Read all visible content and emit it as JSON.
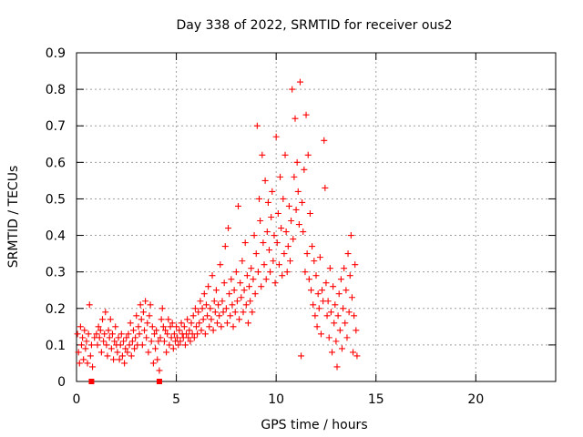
{
  "chart_data": {
    "type": "scatter",
    "title": "Day 338 of 2022, SRMTID for receiver ous2",
    "xlabel": "GPS time / hours",
    "ylabel": "SRMTID / TECUs",
    "xlim": [
      0,
      24
    ],
    "ylim": [
      0,
      0.9
    ],
    "x_ticks": [
      0,
      5,
      10,
      15,
      20
    ],
    "x_tick_labels": [
      "0",
      "5",
      "10",
      "15",
      "20"
    ],
    "y_ticks": [
      0,
      0.1,
      0.2,
      0.3,
      0.4,
      0.5,
      0.6,
      0.7,
      0.8,
      0.9
    ],
    "y_tick_labels": [
      "0",
      "0.1",
      "0.2",
      "0.3",
      "0.4",
      "0.5",
      "0.6",
      "0.7",
      "0.8",
      "0.9"
    ],
    "grid": true,
    "marker": "plus",
    "color": "#ff0000",
    "series": [
      {
        "name": "SRMTID",
        "points": [
          [
            0.05,
            0.13
          ],
          [
            0.1,
            0.08
          ],
          [
            0.15,
            0.05
          ],
          [
            0.2,
            0.15
          ],
          [
            0.25,
            0.1
          ],
          [
            0.3,
            0.12
          ],
          [
            0.35,
            0.06
          ],
          [
            0.4,
            0.14
          ],
          [
            0.45,
            0.09
          ],
          [
            0.5,
            0.11
          ],
          [
            0.55,
            0.05
          ],
          [
            0.6,
            0.13
          ],
          [
            0.65,
            0.21
          ],
          [
            0.7,
            0.07
          ],
          [
            0.75,
            0.1
          ],
          [
            0.8,
            0.04
          ],
          [
            0.9,
            0.12
          ],
          [
            1.0,
            0.13
          ],
          [
            1.05,
            0.1
          ],
          [
            1.1,
            0.15
          ],
          [
            1.15,
            0.12
          ],
          [
            1.2,
            0.14
          ],
          [
            1.25,
            0.08
          ],
          [
            1.3,
            0.17
          ],
          [
            1.35,
            0.11
          ],
          [
            1.4,
            0.13
          ],
          [
            1.45,
            0.19
          ],
          [
            1.5,
            0.1
          ],
          [
            1.55,
            0.07
          ],
          [
            1.6,
            0.14
          ],
          [
            1.65,
            0.12
          ],
          [
            1.7,
            0.17
          ],
          [
            1.75,
            0.09
          ],
          [
            1.8,
            0.13
          ],
          [
            1.85,
            0.06
          ],
          [
            1.9,
            0.11
          ],
          [
            1.95,
            0.15
          ],
          [
            2.0,
            0.1
          ],
          [
            2.05,
            0.08
          ],
          [
            2.1,
            0.12
          ],
          [
            2.15,
            0.06
          ],
          [
            2.2,
            0.1
          ],
          [
            2.25,
            0.13
          ],
          [
            2.3,
            0.07
          ],
          [
            2.35,
            0.11
          ],
          [
            2.4,
            0.05
          ],
          [
            2.45,
            0.09
          ],
          [
            2.5,
            0.12
          ],
          [
            2.55,
            0.08
          ],
          [
            2.6,
            0.13
          ],
          [
            2.65,
            0.1
          ],
          [
            2.7,
            0.16
          ],
          [
            2.75,
            0.07
          ],
          [
            2.8,
            0.11
          ],
          [
            2.85,
            0.14
          ],
          [
            2.9,
            0.09
          ],
          [
            2.95,
            0.12
          ],
          [
            3.0,
            0.18
          ],
          [
            3.05,
            0.1
          ],
          [
            3.1,
            0.15
          ],
          [
            3.15,
            0.13
          ],
          [
            3.2,
            0.21
          ],
          [
            3.25,
            0.17
          ],
          [
            3.3,
            0.1
          ],
          [
            3.35,
            0.19
          ],
          [
            3.4,
            0.14
          ],
          [
            3.45,
            0.22
          ],
          [
            3.5,
            0.12
          ],
          [
            3.55,
            0.16
          ],
          [
            3.6,
            0.08
          ],
          [
            3.65,
            0.18
          ],
          [
            3.7,
            0.21
          ],
          [
            3.75,
            0.11
          ],
          [
            3.8,
            0.15
          ],
          [
            3.85,
            0.05
          ],
          [
            3.9,
            0.13
          ],
          [
            3.95,
            0.09
          ],
          [
            4.0,
            0.14
          ],
          [
            4.05,
            0.06
          ],
          [
            4.1,
            0.11
          ],
          [
            4.15,
            0.03
          ],
          [
            4.2,
            0.12
          ],
          [
            4.25,
            0.17
          ],
          [
            4.3,
            0.2
          ],
          [
            4.35,
            0.15
          ],
          [
            4.4,
            0.11
          ],
          [
            4.45,
            0.14
          ],
          [
            4.5,
            0.08
          ],
          [
            4.55,
            0.13
          ],
          [
            4.6,
            0.17
          ],
          [
            4.65,
            0.1
          ],
          [
            4.7,
            0.15
          ],
          [
            4.75,
            0.12
          ],
          [
            4.8,
            0.16
          ],
          [
            4.85,
            0.09
          ],
          [
            4.9,
            0.13
          ],
          [
            4.95,
            0.11
          ],
          [
            5.0,
            0.15
          ],
          [
            5.05,
            0.12
          ],
          [
            5.1,
            0.1
          ],
          [
            5.15,
            0.14
          ],
          [
            5.2,
            0.11
          ],
          [
            5.25,
            0.16
          ],
          [
            5.3,
            0.13
          ],
          [
            5.35,
            0.12
          ],
          [
            5.4,
            0.15
          ],
          [
            5.45,
            0.1
          ],
          [
            5.5,
            0.13
          ],
          [
            5.55,
            0.17
          ],
          [
            5.6,
            0.12
          ],
          [
            5.65,
            0.14
          ],
          [
            5.7,
            0.11
          ],
          [
            5.75,
            0.16
          ],
          [
            5.8,
            0.13
          ],
          [
            5.85,
            0.18
          ],
          [
            5.9,
            0.12
          ],
          [
            5.95,
            0.2
          ],
          [
            6.0,
            0.15
          ],
          [
            6.05,
            0.13
          ],
          [
            6.1,
            0.19
          ],
          [
            6.15,
            0.16
          ],
          [
            6.2,
            0.22
          ],
          [
            6.25,
            0.14
          ],
          [
            6.3,
            0.2
          ],
          [
            6.35,
            0.17
          ],
          [
            6.4,
            0.24
          ],
          [
            6.45,
            0.13
          ],
          [
            6.5,
            0.21
          ],
          [
            6.55,
            0.18
          ],
          [
            6.6,
            0.26
          ],
          [
            6.65,
            0.15
          ],
          [
            6.7,
            0.2
          ],
          [
            6.75,
            0.17
          ],
          [
            6.8,
            0.29
          ],
          [
            6.85,
            0.14
          ],
          [
            6.9,
            0.22
          ],
          [
            6.95,
            0.19
          ],
          [
            7.0,
            0.25
          ],
          [
            7.05,
            0.16
          ],
          [
            7.1,
            0.21
          ],
          [
            7.15,
            0.18
          ],
          [
            7.2,
            0.32
          ],
          [
            7.25,
            0.15
          ],
          [
            7.3,
            0.22
          ],
          [
            7.35,
            0.19
          ],
          [
            7.4,
            0.27
          ],
          [
            7.45,
            0.37
          ],
          [
            7.5,
            0.2
          ],
          [
            7.55,
            0.16
          ],
          [
            7.6,
            0.42
          ],
          [
            7.65,
            0.24
          ],
          [
            7.7,
            0.18
          ],
          [
            7.75,
            0.28
          ],
          [
            7.8,
            0.21
          ],
          [
            7.85,
            0.15
          ],
          [
            7.9,
            0.25
          ],
          [
            7.95,
            0.19
          ],
          [
            8.0,
            0.3
          ],
          [
            8.05,
            0.22
          ],
          [
            8.1,
            0.48
          ],
          [
            8.15,
            0.17
          ],
          [
            8.2,
            0.27
          ],
          [
            8.25,
            0.23
          ],
          [
            8.3,
            0.33
          ],
          [
            8.35,
            0.19
          ],
          [
            8.4,
            0.25
          ],
          [
            8.45,
            0.38
          ],
          [
            8.5,
            0.21
          ],
          [
            8.55,
            0.29
          ],
          [
            8.6,
            0.16
          ],
          [
            8.65,
            0.26
          ],
          [
            8.7,
            0.22
          ],
          [
            8.75,
            0.31
          ],
          [
            8.8,
            0.19
          ],
          [
            8.85,
            0.28
          ],
          [
            8.9,
            0.4
          ],
          [
            8.95,
            0.24
          ],
          [
            9.0,
            0.35
          ],
          [
            9.05,
            0.7
          ],
          [
            9.1,
            0.3
          ],
          [
            9.15,
            0.5
          ],
          [
            9.2,
            0.44
          ],
          [
            9.25,
            0.26
          ],
          [
            9.3,
            0.62
          ],
          [
            9.35,
            0.38
          ],
          [
            9.4,
            0.32
          ],
          [
            9.45,
            0.55
          ],
          [
            9.5,
            0.28
          ],
          [
            9.55,
            0.41
          ],
          [
            9.6,
            0.49
          ],
          [
            9.65,
            0.36
          ],
          [
            9.7,
            0.3
          ],
          [
            9.75,
            0.45
          ],
          [
            9.8,
            0.52
          ],
          [
            9.85,
            0.33
          ],
          [
            9.9,
            0.4
          ],
          [
            9.95,
            0.27
          ],
          [
            10.0,
            0.67
          ],
          [
            10.05,
            0.38
          ],
          [
            10.1,
            0.46
          ],
          [
            10.15,
            0.32
          ],
          [
            10.2,
            0.56
          ],
          [
            10.25,
            0.42
          ],
          [
            10.3,
            0.29
          ],
          [
            10.35,
            0.5
          ],
          [
            10.4,
            0.35
          ],
          [
            10.45,
            0.62
          ],
          [
            10.5,
            0.41
          ],
          [
            10.55,
            0.3
          ],
          [
            10.6,
            0.37
          ],
          [
            10.65,
            0.48
          ],
          [
            10.7,
            0.33
          ],
          [
            10.75,
            0.44
          ],
          [
            10.8,
            0.8
          ],
          [
            10.85,
            0.39
          ],
          [
            10.9,
            0.56
          ],
          [
            10.95,
            0.72
          ],
          [
            11.0,
            0.47
          ],
          [
            11.05,
            0.6
          ],
          [
            11.1,
            0.52
          ],
          [
            11.15,
            0.43
          ],
          [
            11.2,
            0.82
          ],
          [
            11.25,
            0.07
          ],
          [
            11.3,
            0.49
          ],
          [
            11.35,
            0.41
          ],
          [
            11.4,
            0.58
          ],
          [
            11.45,
            0.3
          ],
          [
            11.5,
            0.73
          ],
          [
            11.55,
            0.35
          ],
          [
            11.6,
            0.62
          ],
          [
            11.65,
            0.28
          ],
          [
            11.7,
            0.46
          ],
          [
            11.75,
            0.25
          ],
          [
            11.8,
            0.37
          ],
          [
            11.85,
            0.21
          ],
          [
            11.9,
            0.33
          ],
          [
            11.95,
            0.18
          ],
          [
            12.0,
            0.29
          ],
          [
            12.05,
            0.15
          ],
          [
            12.1,
            0.24
          ],
          [
            12.15,
            0.2
          ],
          [
            12.2,
            0.34
          ],
          [
            12.25,
            0.13
          ],
          [
            12.3,
            0.25
          ],
          [
            12.35,
            0.22
          ],
          [
            12.4,
            0.66
          ],
          [
            12.45,
            0.53
          ],
          [
            12.5,
            0.27
          ],
          [
            12.55,
            0.18
          ],
          [
            12.6,
            0.22
          ],
          [
            12.65,
            0.12
          ],
          [
            12.7,
            0.31
          ],
          [
            12.75,
            0.19
          ],
          [
            12.8,
            0.08
          ],
          [
            12.85,
            0.26
          ],
          [
            12.9,
            0.16
          ],
          [
            12.95,
            0.21
          ],
          [
            13.0,
            0.11
          ],
          [
            13.05,
            0.04
          ],
          [
            13.1,
            0.18
          ],
          [
            13.15,
            0.24
          ],
          [
            13.2,
            0.14
          ],
          [
            13.25,
            0.28
          ],
          [
            13.3,
            0.09
          ],
          [
            13.35,
            0.2
          ],
          [
            13.4,
            0.31
          ],
          [
            13.45,
            0.16
          ],
          [
            13.5,
            0.25
          ],
          [
            13.55,
            0.12
          ],
          [
            13.6,
            0.35
          ],
          [
            13.65,
            0.19
          ],
          [
            13.7,
            0.29
          ],
          [
            13.75,
            0.4
          ],
          [
            13.8,
            0.23
          ],
          [
            13.85,
            0.08
          ],
          [
            13.9,
            0.18
          ],
          [
            13.95,
            0.32
          ],
          [
            14.0,
            0.14
          ],
          [
            14.05,
            0.07
          ]
        ]
      }
    ],
    "outliers_baseline": [
      [
        0.75,
        0.0
      ],
      [
        4.15,
        0.0
      ]
    ]
  }
}
